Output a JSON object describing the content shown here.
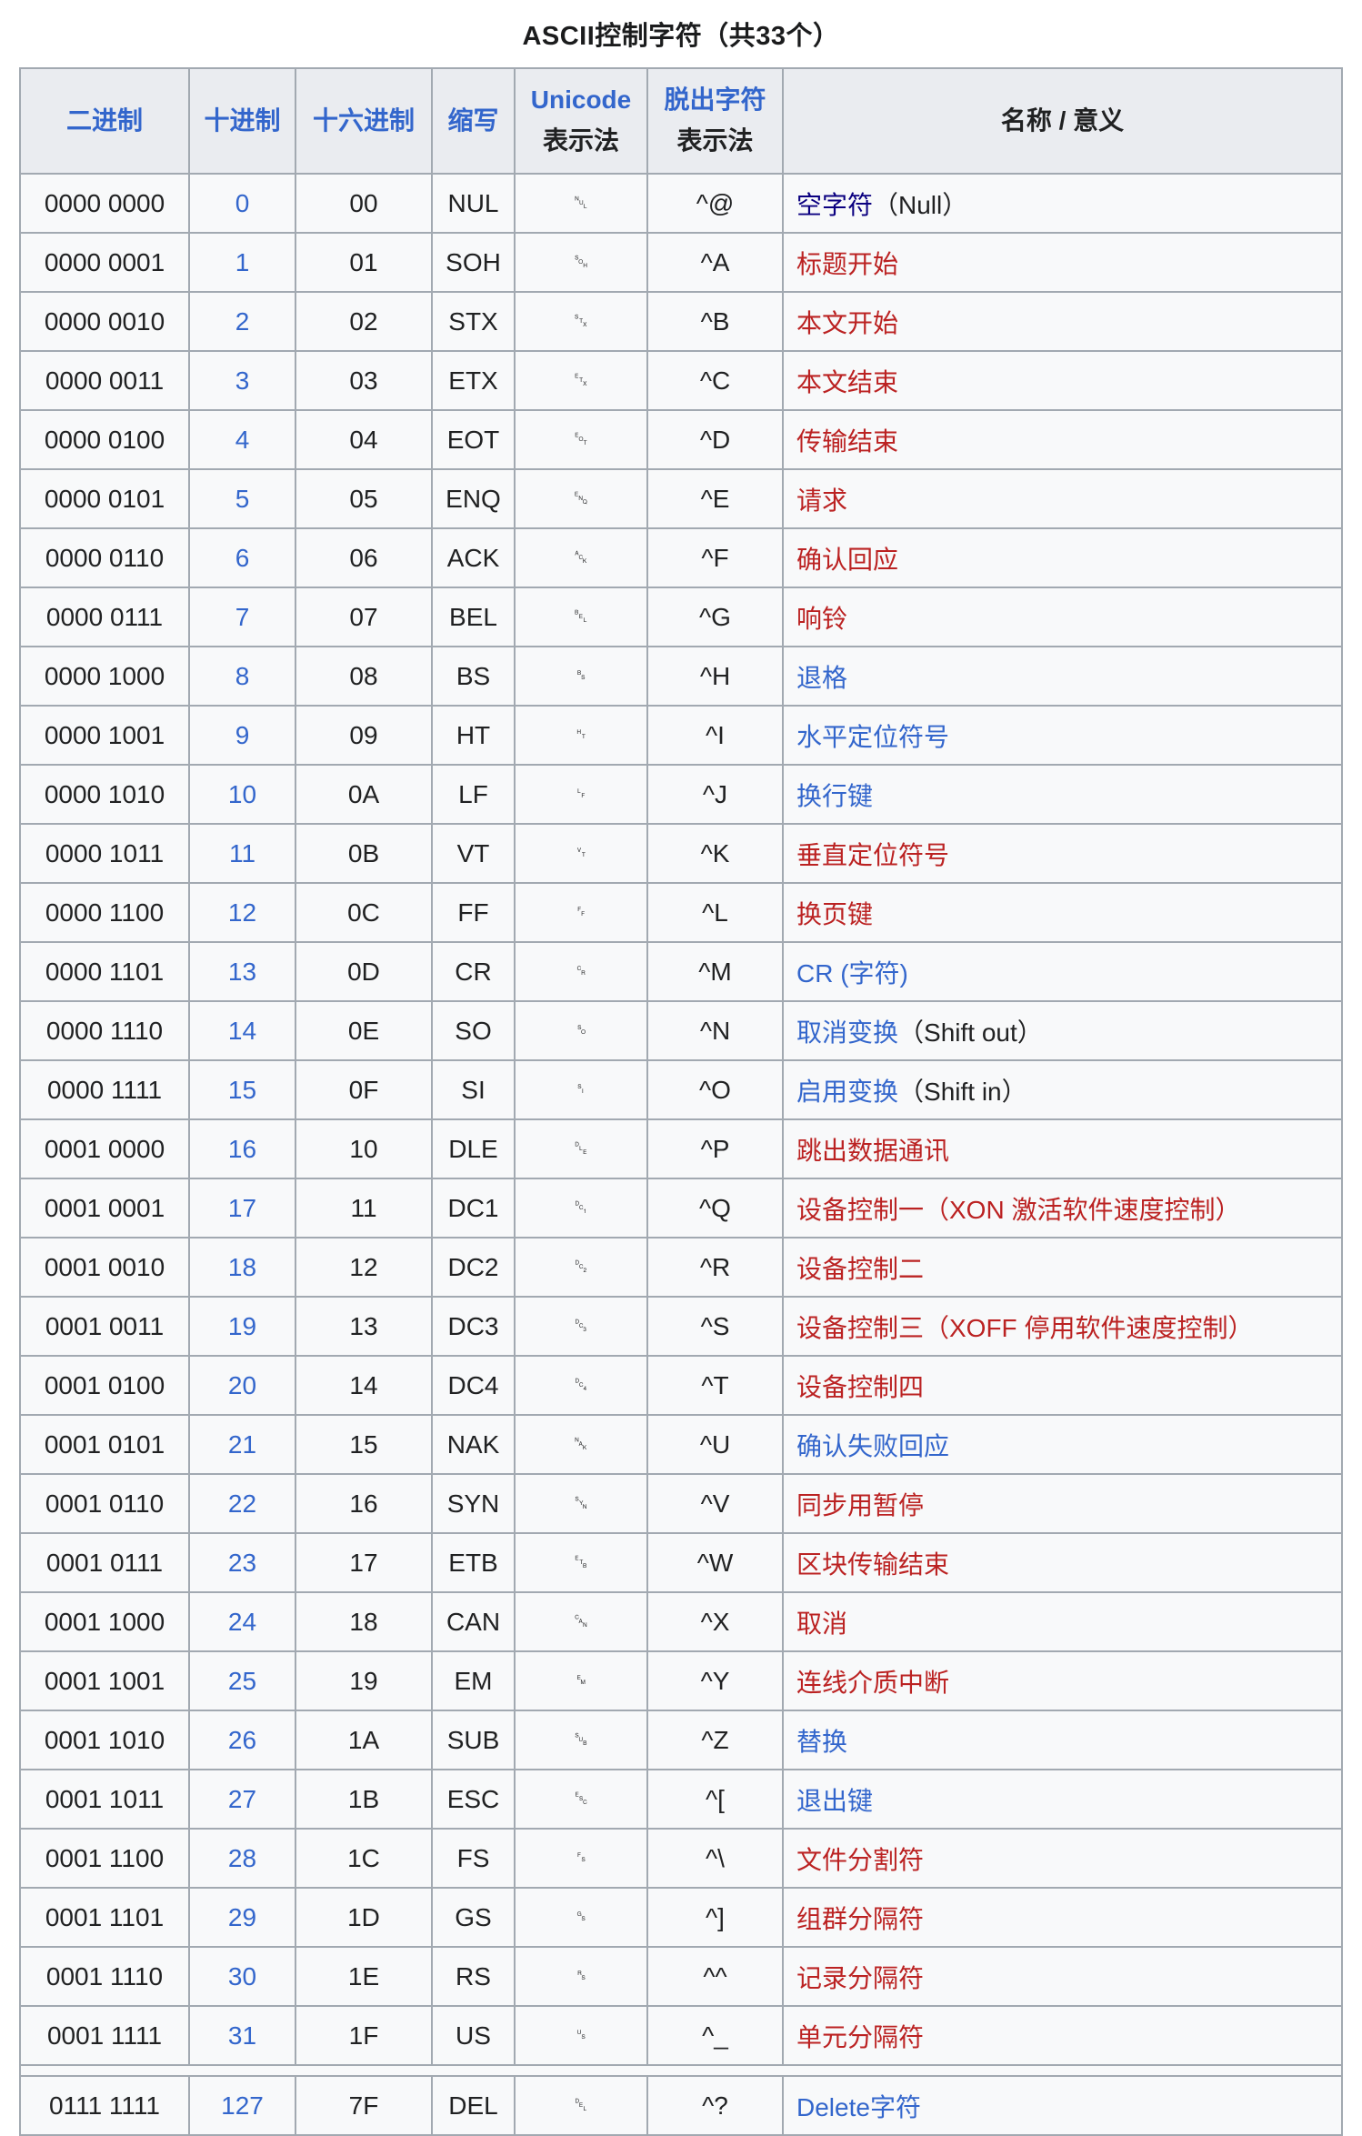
{
  "title": "ASCII控制字符（共33个）",
  "colors": {
    "blue": "#3366cc",
    "visited": "#0b0080",
    "red": "#bb2222",
    "text": "#202122",
    "border": "#a2a9b1",
    "header_bg": "#eaecf0",
    "row_bg": "#f8f9fa"
  },
  "table": {
    "headers": [
      {
        "key": "binary",
        "parts": [
          {
            "text": "二进制",
            "link": true
          }
        ]
      },
      {
        "key": "decimal",
        "parts": [
          {
            "text": "十进制",
            "link": true
          }
        ]
      },
      {
        "key": "hexadecimal",
        "parts": [
          {
            "text": "十六进制",
            "link": true
          }
        ]
      },
      {
        "key": "abbreviation",
        "parts": [
          {
            "text": "缩写",
            "link": true
          }
        ]
      },
      {
        "key": "unicode-representation",
        "parts": [
          {
            "text": "Unicode",
            "link": true
          },
          {
            "text": "表示法",
            "link": false
          }
        ]
      },
      {
        "key": "escape-representation",
        "parts": [
          {
            "text": "脱出字符",
            "link": true
          },
          {
            "text": "表示法",
            "link": false
          }
        ]
      },
      {
        "key": "name-meaning",
        "parts": [
          {
            "text": "名称 / 意义",
            "link": false
          }
        ]
      }
    ],
    "rows": [
      {
        "binary": "0000 0000",
        "decimal": "0",
        "hex": "00",
        "abbr": "NUL",
        "unicode": "␀",
        "escape": "^@",
        "name": [
          {
            "t": "空字符",
            "c": "visited",
            "link": true
          },
          {
            "t": "（Null）",
            "c": "plain"
          }
        ]
      },
      {
        "binary": "0000 0001",
        "decimal": "1",
        "hex": "01",
        "abbr": "SOH",
        "unicode": "␁",
        "escape": "^A",
        "name": [
          {
            "t": "标题开始",
            "c": "red",
            "link": true
          }
        ]
      },
      {
        "binary": "0000 0010",
        "decimal": "2",
        "hex": "02",
        "abbr": "STX",
        "unicode": "␂",
        "escape": "^B",
        "name": [
          {
            "t": "本文开始",
            "c": "red",
            "link": true
          }
        ]
      },
      {
        "binary": "0000 0011",
        "decimal": "3",
        "hex": "03",
        "abbr": "ETX",
        "unicode": "␃",
        "escape": "^C",
        "name": [
          {
            "t": "本文结束",
            "c": "red",
            "link": true
          }
        ]
      },
      {
        "binary": "0000 0100",
        "decimal": "4",
        "hex": "04",
        "abbr": "EOT",
        "unicode": "␄",
        "escape": "^D",
        "name": [
          {
            "t": "传输结束",
            "c": "red",
            "link": true
          }
        ]
      },
      {
        "binary": "0000 0101",
        "decimal": "5",
        "hex": "05",
        "abbr": "ENQ",
        "unicode": "␅",
        "escape": "^E",
        "name": [
          {
            "t": "请求",
            "c": "red",
            "link": true
          }
        ]
      },
      {
        "binary": "0000 0110",
        "decimal": "6",
        "hex": "06",
        "abbr": "ACK",
        "unicode": "␆",
        "escape": "^F",
        "name": [
          {
            "t": "确认回应",
            "c": "red",
            "link": true
          }
        ]
      },
      {
        "binary": "0000 0111",
        "decimal": "7",
        "hex": "07",
        "abbr": "BEL",
        "unicode": "␇",
        "escape": "^G",
        "name": [
          {
            "t": "响铃",
            "c": "red",
            "link": true
          }
        ]
      },
      {
        "binary": "0000 1000",
        "decimal": "8",
        "hex": "08",
        "abbr": "BS",
        "unicode": "␈",
        "escape": "^H",
        "name": [
          {
            "t": "退格",
            "c": "blue",
            "link": true
          }
        ]
      },
      {
        "binary": "0000 1001",
        "decimal": "9",
        "hex": "09",
        "abbr": "HT",
        "unicode": "␉",
        "escape": "^I",
        "name": [
          {
            "t": "水平定位符号",
            "c": "blue",
            "link": true
          }
        ]
      },
      {
        "binary": "0000 1010",
        "decimal": "10",
        "hex": "0A",
        "abbr": "LF",
        "unicode": "␊",
        "escape": "^J",
        "name": [
          {
            "t": "换行键",
            "c": "blue",
            "link": true
          }
        ]
      },
      {
        "binary": "0000 1011",
        "decimal": "11",
        "hex": "0B",
        "abbr": "VT",
        "unicode": "␋",
        "escape": "^K",
        "name": [
          {
            "t": "垂直定位符号",
            "c": "red",
            "link": true
          }
        ]
      },
      {
        "binary": "0000 1100",
        "decimal": "12",
        "hex": "0C",
        "abbr": "FF",
        "unicode": "␌",
        "escape": "^L",
        "name": [
          {
            "t": "换页键",
            "c": "red",
            "link": true
          }
        ]
      },
      {
        "binary": "0000 1101",
        "decimal": "13",
        "hex": "0D",
        "abbr": "CR",
        "unicode": "␍",
        "escape": "^M",
        "name": [
          {
            "t": "CR (字符)",
            "c": "blue",
            "link": true
          }
        ]
      },
      {
        "binary": "0000 1110",
        "decimal": "14",
        "hex": "0E",
        "abbr": "SO",
        "unicode": "␎",
        "escape": "^N",
        "name": [
          {
            "t": "取消变换",
            "c": "blue",
            "link": true
          },
          {
            "t": "（Shift out）",
            "c": "plain"
          }
        ]
      },
      {
        "binary": "0000 1111",
        "decimal": "15",
        "hex": "0F",
        "abbr": "SI",
        "unicode": "␏",
        "escape": "^O",
        "name": [
          {
            "t": "启用变换",
            "c": "blue",
            "link": true
          },
          {
            "t": "（Shift in）",
            "c": "plain"
          }
        ]
      },
      {
        "binary": "0001 0000",
        "decimal": "16",
        "hex": "10",
        "abbr": "DLE",
        "unicode": "␐",
        "escape": "^P",
        "name": [
          {
            "t": "跳出数据通讯",
            "c": "red",
            "link": true
          }
        ]
      },
      {
        "binary": "0001 0001",
        "decimal": "17",
        "hex": "11",
        "abbr": "DC1",
        "unicode": "␑",
        "escape": "^Q",
        "name": [
          {
            "t": "设备控制一（XON 激活软件速度控制）",
            "c": "red",
            "link": true
          }
        ]
      },
      {
        "binary": "0001 0010",
        "decimal": "18",
        "hex": "12",
        "abbr": "DC2",
        "unicode": "␒",
        "escape": "^R",
        "name": [
          {
            "t": "设备控制二",
            "c": "red",
            "link": true
          }
        ]
      },
      {
        "binary": "0001 0011",
        "decimal": "19",
        "hex": "13",
        "abbr": "DC3",
        "unicode": "␓",
        "escape": "^S",
        "name": [
          {
            "t": "设备控制三（XOFF 停用软件速度控制）",
            "c": "red",
            "link": true
          }
        ]
      },
      {
        "binary": "0001 0100",
        "decimal": "20",
        "hex": "14",
        "abbr": "DC4",
        "unicode": "␔",
        "escape": "^T",
        "name": [
          {
            "t": "设备控制四",
            "c": "red",
            "link": true
          }
        ]
      },
      {
        "binary": "0001 0101",
        "decimal": "21",
        "hex": "15",
        "abbr": "NAK",
        "unicode": "␕",
        "escape": "^U",
        "name": [
          {
            "t": "确认失败回应",
            "c": "blue",
            "link": true
          }
        ]
      },
      {
        "binary": "0001 0110",
        "decimal": "22",
        "hex": "16",
        "abbr": "SYN",
        "unicode": "␖",
        "escape": "^V",
        "name": [
          {
            "t": "同步用暂停",
            "c": "red",
            "link": true
          }
        ]
      },
      {
        "binary": "0001 0111",
        "decimal": "23",
        "hex": "17",
        "abbr": "ETB",
        "unicode": "␗",
        "escape": "^W",
        "name": [
          {
            "t": "区块传输结束",
            "c": "red",
            "link": true
          }
        ]
      },
      {
        "binary": "0001 1000",
        "decimal": "24",
        "hex": "18",
        "abbr": "CAN",
        "unicode": "␘",
        "escape": "^X",
        "name": [
          {
            "t": "取消",
            "c": "red",
            "link": true
          }
        ]
      },
      {
        "binary": "0001 1001",
        "decimal": "25",
        "hex": "19",
        "abbr": "EM",
        "unicode": "␙",
        "escape": "^Y",
        "name": [
          {
            "t": "连线介质中断",
            "c": "red",
            "link": true
          }
        ]
      },
      {
        "binary": "0001 1010",
        "decimal": "26",
        "hex": "1A",
        "abbr": "SUB",
        "unicode": "␚",
        "escape": "^Z",
        "name": [
          {
            "t": "替换",
            "c": "blue",
            "link": true
          }
        ]
      },
      {
        "binary": "0001 1011",
        "decimal": "27",
        "hex": "1B",
        "abbr": "ESC",
        "unicode": "␛",
        "escape": "^[",
        "name": [
          {
            "t": "退出键",
            "c": "blue",
            "link": true
          }
        ]
      },
      {
        "binary": "0001 1100",
        "decimal": "28",
        "hex": "1C",
        "abbr": "FS",
        "unicode": "␜",
        "escape": "^\\",
        "name": [
          {
            "t": "文件分割符",
            "c": "red",
            "link": true
          }
        ]
      },
      {
        "binary": "0001 1101",
        "decimal": "29",
        "hex": "1D",
        "abbr": "GS",
        "unicode": "␝",
        "escape": "^]",
        "name": [
          {
            "t": "组群分隔符",
            "c": "red",
            "link": true
          }
        ]
      },
      {
        "binary": "0001 1110",
        "decimal": "30",
        "hex": "1E",
        "abbr": "RS",
        "unicode": "␞",
        "escape": "^^",
        "name": [
          {
            "t": "记录分隔符",
            "c": "red",
            "link": true
          }
        ]
      },
      {
        "binary": "0001 1111",
        "decimal": "31",
        "hex": "1F",
        "abbr": "US",
        "unicode": "␟",
        "escape": "^_",
        "name": [
          {
            "t": "单元分隔符",
            "c": "red",
            "link": true
          }
        ]
      },
      {
        "binary": "0111 1111",
        "decimal": "127",
        "hex": "7F",
        "abbr": "DEL",
        "unicode": "␡",
        "escape": "^?",
        "name": [
          {
            "t": "Delete字符",
            "c": "blue",
            "link": true
          }
        ],
        "spacer_before": true
      }
    ]
  }
}
